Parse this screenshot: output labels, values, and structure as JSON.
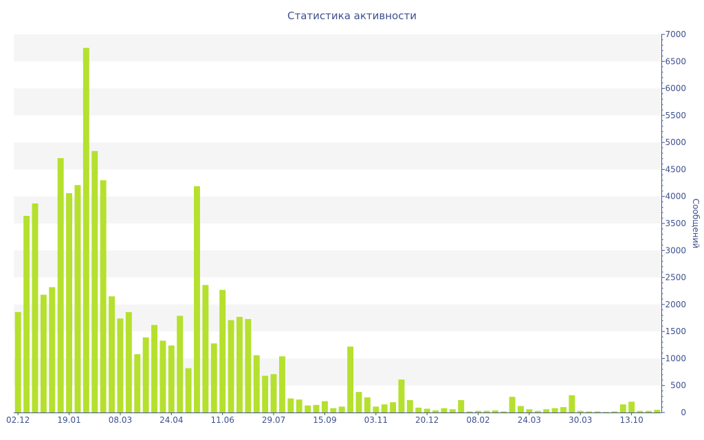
{
  "chart_data": {
    "type": "bar",
    "title": "Статистика активности",
    "xlabel": "",
    "ylabel": "Сообщений",
    "y_axis_side": "right",
    "ylim": [
      0,
      7000
    ],
    "y_ticks": [
      0,
      500,
      1000,
      1500,
      2000,
      2500,
      3000,
      3500,
      4000,
      4500,
      5000,
      5500,
      6000,
      6500,
      7000
    ],
    "grid": "alternating horizontal bands",
    "bar_color": "#b5e02e",
    "band_color": "#f5f5f5",
    "text_color": "#3d4f8f",
    "x_tick_labels": [
      {
        "index": 0,
        "label": "02.12"
      },
      {
        "index": 6,
        "label": "19.01"
      },
      {
        "index": 12,
        "label": "08.03"
      },
      {
        "index": 18,
        "label": "24.04"
      },
      {
        "index": 24,
        "label": "11.06"
      },
      {
        "index": 30,
        "label": "29.07"
      },
      {
        "index": 36,
        "label": "15.09"
      },
      {
        "index": 42,
        "label": "03.11"
      },
      {
        "index": 48,
        "label": "20.12"
      },
      {
        "index": 54,
        "label": "08.02"
      },
      {
        "index": 60,
        "label": "24.03"
      },
      {
        "index": 66,
        "label": "30.03"
      },
      {
        "index": 72,
        "label": "13.10"
      }
    ],
    "values": [
      1860,
      3640,
      3870,
      2180,
      2320,
      4710,
      4060,
      4210,
      6750,
      4840,
      4300,
      2150,
      1740,
      1860,
      1080,
      1390,
      1620,
      1330,
      1240,
      1790,
      820,
      4190,
      2360,
      1280,
      2270,
      1710,
      1770,
      1730,
      1060,
      680,
      710,
      1040,
      260,
      240,
      130,
      140,
      210,
      80,
      110,
      1220,
      380,
      280,
      110,
      150,
      190,
      610,
      230,
      90,
      70,
      40,
      80,
      60,
      230,
      20,
      30,
      30,
      40,
      20,
      290,
      120,
      60,
      30,
      60,
      80,
      100,
      320,
      30,
      20,
      20,
      10,
      20,
      150,
      200,
      30,
      30,
      50
    ]
  }
}
